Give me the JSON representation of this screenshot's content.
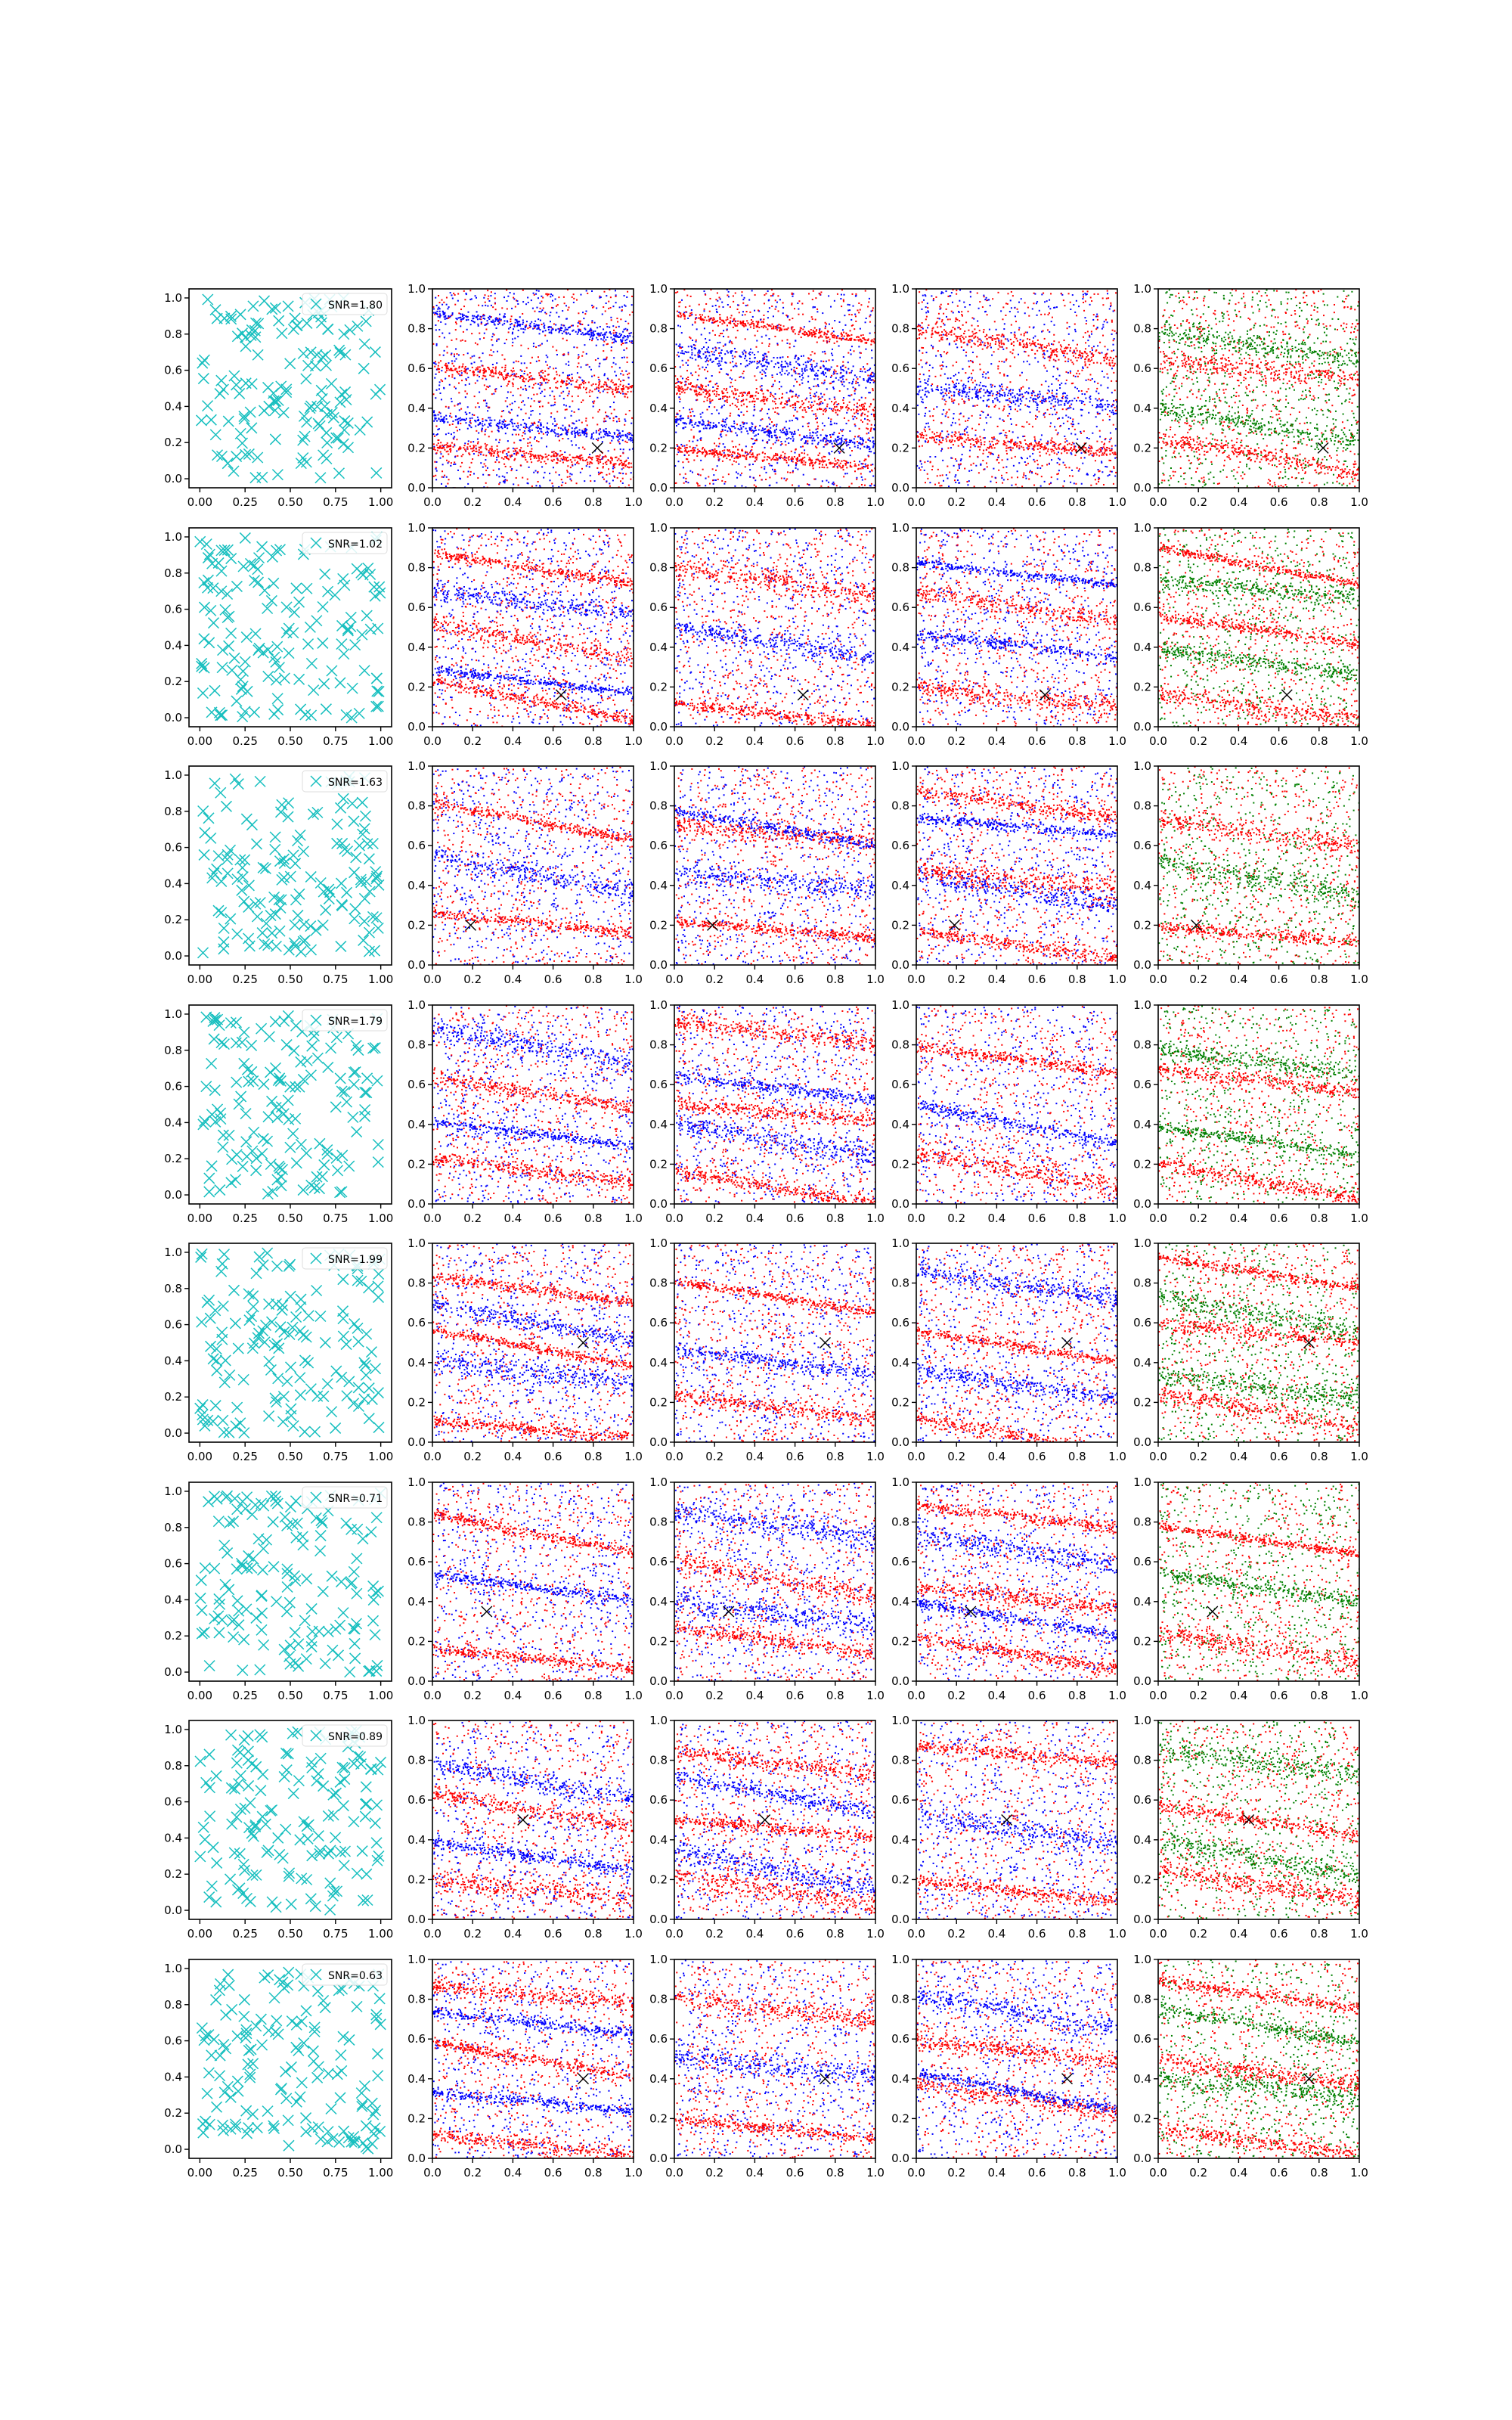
{
  "figure": {
    "columns": [
      "scatter_x",
      "panel_2",
      "panel_3",
      "panel_4",
      "panel_5"
    ],
    "tick_labels": {
      "first_col_x": [
        "0.00",
        "0.25",
        "0.50",
        "0.75",
        "1.00"
      ],
      "other_x": [
        "0.0",
        "0.2",
        "0.4",
        "0.6",
        "0.8",
        "1.0"
      ],
      "y": [
        "0.0",
        "0.2",
        "0.4",
        "0.6",
        "0.8",
        "1.0"
      ]
    },
    "colors": {
      "cyan": "#17bfbf",
      "red": "#ff0000",
      "blue": "#0000ff",
      "green": "#008000",
      "marker": "#000000"
    }
  },
  "chart_data": [
    {
      "row": 0,
      "type": "scatter",
      "legend": "SNR=1.80",
      "marker_x": [
        0.82,
        0.2
      ],
      "xlim": [
        0,
        1
      ],
      "ylim": [
        0,
        1
      ],
      "n_points": 150,
      "panel_colors": [
        "cyan",
        "red_blue",
        "red_blue",
        "red_blue",
        "red_green"
      ]
    },
    {
      "row": 1,
      "type": "scatter",
      "legend": "SNR=1.02",
      "marker_x": [
        0.64,
        0.16
      ],
      "xlim": [
        0,
        1
      ],
      "ylim": [
        0,
        1
      ],
      "n_points": 150,
      "panel_colors": [
        "cyan",
        "red_blue",
        "red_blue",
        "red_blue",
        "red_green"
      ]
    },
    {
      "row": 2,
      "type": "scatter",
      "legend": "SNR=1.63",
      "marker_x": [
        0.19,
        0.2
      ],
      "xlim": [
        0,
        1
      ],
      "ylim": [
        0,
        1
      ],
      "n_points": 150,
      "panel_colors": [
        "cyan",
        "red_blue",
        "red_blue",
        "red_blue",
        "red_green"
      ]
    },
    {
      "row": 3,
      "type": "scatter",
      "legend": "SNR=1.79",
      "marker_x": null,
      "xlim": [
        0,
        1
      ],
      "ylim": [
        0,
        1
      ],
      "n_points": 150,
      "panel_colors": [
        "cyan",
        "red_blue",
        "red_blue",
        "red_blue",
        "red_green"
      ]
    },
    {
      "row": 4,
      "type": "scatter",
      "legend": "SNR=1.99",
      "marker_x": [
        0.75,
        0.5
      ],
      "xlim": [
        0,
        1
      ],
      "ylim": [
        0,
        1
      ],
      "n_points": 150,
      "panel_colors": [
        "cyan",
        "red_blue",
        "red_blue",
        "red_blue",
        "red_green"
      ]
    },
    {
      "row": 5,
      "type": "scatter",
      "legend": "SNR=0.71",
      "marker_x": [
        0.27,
        0.35
      ],
      "xlim": [
        0,
        1
      ],
      "ylim": [
        0,
        1
      ],
      "n_points": 150,
      "panel_colors": [
        "cyan",
        "red_blue",
        "red_blue",
        "red_blue",
        "red_green"
      ]
    },
    {
      "row": 6,
      "type": "scatter",
      "legend": "SNR=0.89",
      "marker_x": [
        0.45,
        0.5
      ],
      "xlim": [
        0,
        1
      ],
      "ylim": [
        0,
        1
      ],
      "n_points": 150,
      "panel_colors": [
        "cyan",
        "red_blue",
        "red_blue",
        "red_blue",
        "red_green"
      ]
    },
    {
      "row": 7,
      "type": "scatter",
      "legend": "SNR=0.63",
      "marker_x": [
        0.75,
        0.4
      ],
      "xlim": [
        0,
        1
      ],
      "ylim": [
        0,
        1
      ],
      "n_points": 150,
      "panel_colors": [
        "cyan",
        "red_blue",
        "red_blue",
        "red_blue",
        "red_green"
      ]
    }
  ]
}
